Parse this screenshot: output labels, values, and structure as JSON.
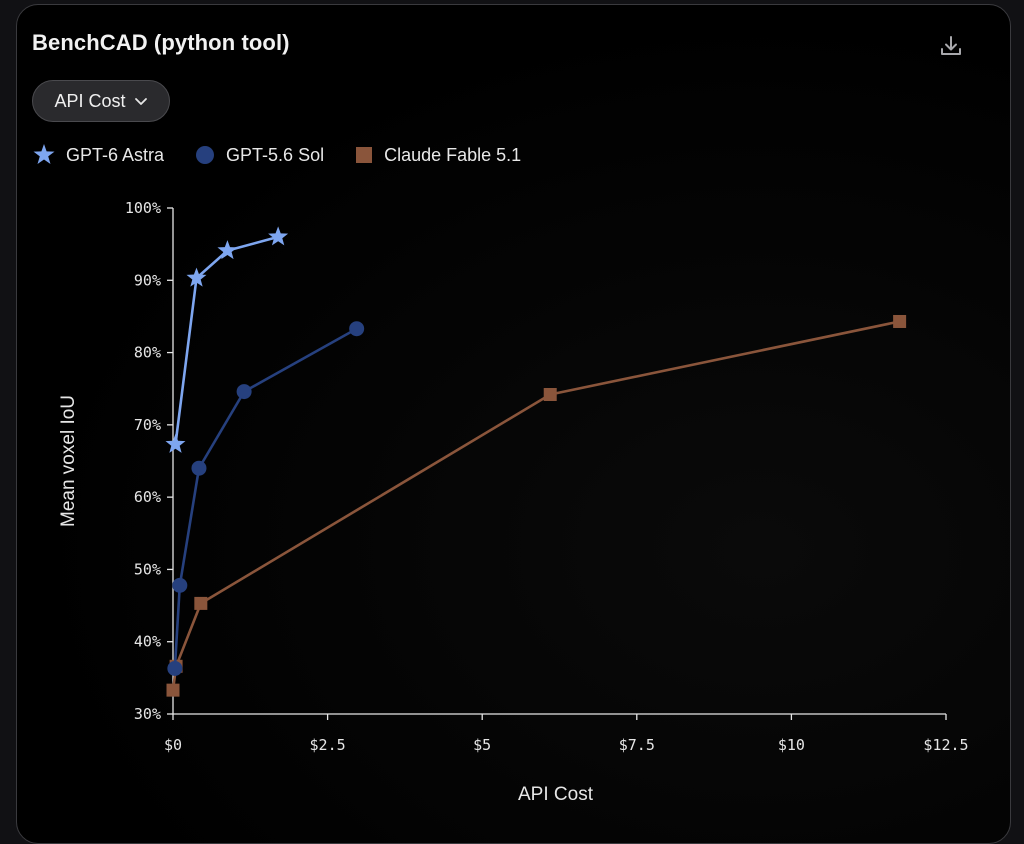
{
  "header": {
    "title": "BenchCAD (python tool)",
    "download_icon": "download-icon"
  },
  "dropdown": {
    "label": "API Cost",
    "icon": "chevron-down-icon"
  },
  "colors": {
    "gpt6": "#7ea6f0",
    "gpt56": "#26407e",
    "claude": "#8a553b",
    "axis": "#e6e6e6"
  },
  "chart_data": {
    "type": "line",
    "title": "BenchCAD (python tool)",
    "xlabel": "API Cost",
    "ylabel": "Mean voxel IoU",
    "xlim": [
      0,
      12.5
    ],
    "ylim": [
      30,
      100
    ],
    "x_ticks": [
      0,
      2.5,
      5,
      7.5,
      10,
      12.5
    ],
    "x_tick_labels": [
      "$0",
      "$2.5",
      "$5",
      "$7.5",
      "$10",
      "$12.5"
    ],
    "y_ticks": [
      30,
      40,
      50,
      60,
      70,
      80,
      90,
      100
    ],
    "y_tick_labels": [
      "30%",
      "40%",
      "50%",
      "60%",
      "70%",
      "80%",
      "90%",
      "100%"
    ],
    "grid": false,
    "legend_position": "top-left",
    "series": [
      {
        "name": "GPT-6 Astra",
        "marker": "star",
        "color": "#7ea6f0",
        "points": [
          [
            0.04,
            67.3
          ],
          [
            0.38,
            90.3
          ],
          [
            0.88,
            94.1
          ],
          [
            1.7,
            96.0
          ]
        ]
      },
      {
        "name": "GPT-5.6 Sol",
        "marker": "circle",
        "color": "#26407e",
        "points": [
          [
            0.03,
            36.3
          ],
          [
            0.11,
            47.8
          ],
          [
            0.42,
            64.0
          ],
          [
            1.15,
            74.6
          ],
          [
            2.97,
            83.3
          ]
        ]
      },
      {
        "name": "Claude Fable 5.1",
        "marker": "square",
        "color": "#8a553b",
        "points": [
          [
            0.0,
            33.3
          ],
          [
            0.05,
            36.6
          ],
          [
            0.45,
            45.3
          ],
          [
            6.1,
            74.2
          ],
          [
            11.75,
            84.3
          ]
        ]
      }
    ]
  }
}
